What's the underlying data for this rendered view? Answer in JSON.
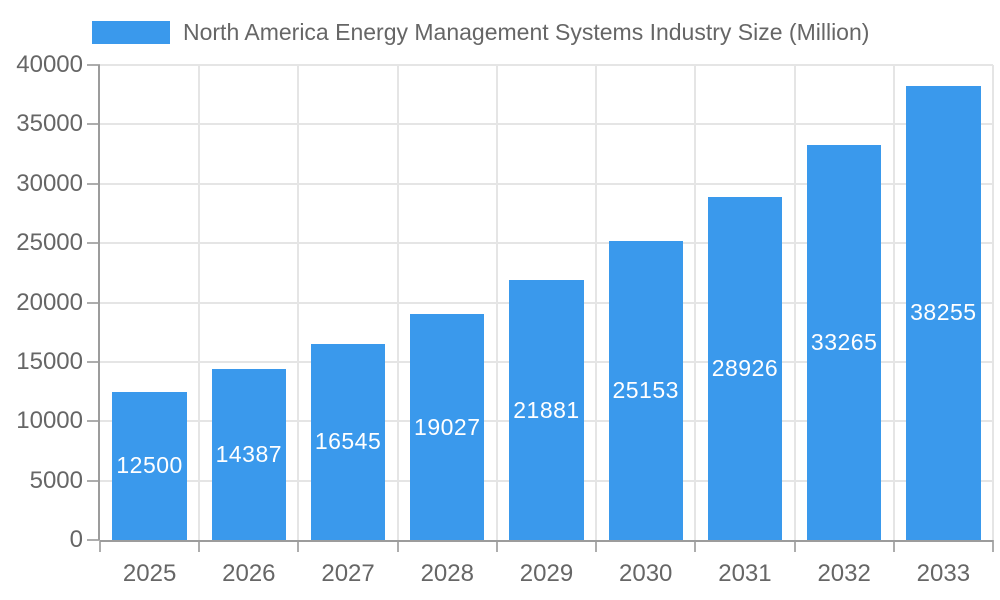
{
  "chart_data": {
    "type": "bar",
    "title": "North America Energy Management Systems Industry Size (Million)",
    "legend": {
      "position": "top-left",
      "label": "North America Energy Management Systems Industry Size (Million)"
    },
    "categories": [
      "2025",
      "2026",
      "2027",
      "2028",
      "2029",
      "2030",
      "2031",
      "2032",
      "2033"
    ],
    "series": [
      {
        "name": "North America Energy Management Systems Industry Size (Million)",
        "values": [
          12500,
          14387,
          16545,
          19027,
          21881,
          25153,
          28926,
          33265,
          38255
        ]
      }
    ],
    "xlabel": "",
    "ylabel": "",
    "ylim": [
      0,
      40000
    ],
    "y_ticks": [
      0,
      5000,
      10000,
      15000,
      20000,
      25000,
      30000,
      35000,
      40000
    ],
    "grid": true,
    "value_labels": "inside-center",
    "colors": {
      "bar": "#3A99EC",
      "value_label_text": "#FFFFFF",
      "axis_text": "#666666",
      "axis_line": "#9C9C9C",
      "gridline": "#E5E5E5",
      "tick": "#ADADAD"
    }
  }
}
